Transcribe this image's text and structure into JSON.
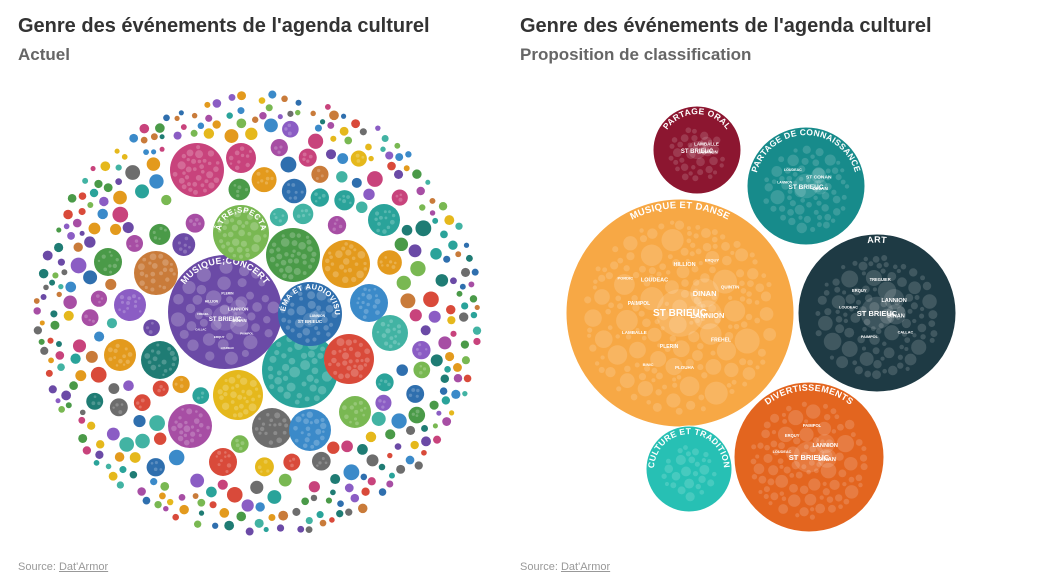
{
  "left": {
    "title": "Genre des événements de l'agenda culturel",
    "subtitle": "Actuel",
    "source_label": "Source:",
    "source_link": "Dat'Armor"
  },
  "right": {
    "title": "Genre des événements de l'agenda culturel",
    "subtitle": "Proposition de classification",
    "source_label": "Source:",
    "source_link": "Dat'Armor"
  },
  "chart_data": [
    {
      "type": "packed-bubble",
      "title": "Genre des événements de l'agenda culturel",
      "subtitle": "Actuel",
      "labeled_groups": [
        {
          "name": "MUSIQUE;CONCERT",
          "color": "#6b4aa6",
          "places": [
            "ST BRIEUC",
            "LANNION",
            "DINAN",
            "HILLION",
            "FREHEL",
            "PLERIN",
            "PAIMPOL",
            "ERQUY",
            "LOUDEAC",
            "CALLAC"
          ]
        },
        {
          "name": "THÉÂTRE;SPECTACLE",
          "color": "#79b852",
          "places": []
        },
        {
          "name": "CINÉMA ET AUDIOVISUEL",
          "color": "#2f6fae",
          "places": [
            "ST BRIEUC",
            "LANNION"
          ]
        }
      ],
      "palette": [
        "#6b4aa6",
        "#79b852",
        "#2f6fae",
        "#2aa39a",
        "#d94a3a",
        "#e39a1d",
        "#e5b81c",
        "#c8437c",
        "#8b5dc4",
        "#3b8ac9",
        "#4a9a48",
        "#c97b3a",
        "#6d6d6d",
        "#1f7c74",
        "#a74ea4",
        "#42b3a3"
      ]
    },
    {
      "type": "packed-bubble",
      "title": "Genre des événements de l'agenda culturel",
      "subtitle": "Proposition de classification",
      "groups": [
        {
          "name": "MUSIQUE ET DANSE",
          "color": "#f7a845",
          "places": [
            "ST BRIEUC",
            "DINAN",
            "LANNION",
            "LOUDEAC",
            "PAIMPOL",
            "HILLION",
            "FREHEL",
            "PLERIN",
            "PLOUHA",
            "LAMBALLE",
            "QUINTIN",
            "BINIC",
            "ERQUY",
            "PORDIC"
          ]
        },
        {
          "name": "ART",
          "color": "#1e3a44",
          "places": [
            "ST BRIEUC",
            "LANNION",
            "DINAN",
            "ERQUY",
            "LOUDEAC",
            "TREGUIER",
            "CALLAC",
            "PAIMPOL"
          ]
        },
        {
          "name": "DIVERTISSEMENTS",
          "color": "#e3651f",
          "places": [
            "ST BRIEUC",
            "LANNION",
            "DINAN",
            "ERQUY",
            "LOUDEAC",
            "PAIMPOL"
          ]
        },
        {
          "name": "PARTAGE DE CONNAISSANCE",
          "color": "#178b8b",
          "places": [
            "ST BRIEUC",
            "ST CONAN",
            "DINAN",
            "LOUDEAC",
            "LANNION"
          ]
        },
        {
          "name": "PARTAGE ORAL",
          "color": "#8c1630",
          "places": [
            "ST BRIEUC",
            "LAMBALLE",
            "LANNION"
          ]
        },
        {
          "name": "CULTURE ET TRADITION",
          "color": "#27c0b4",
          "places": []
        }
      ]
    }
  ]
}
